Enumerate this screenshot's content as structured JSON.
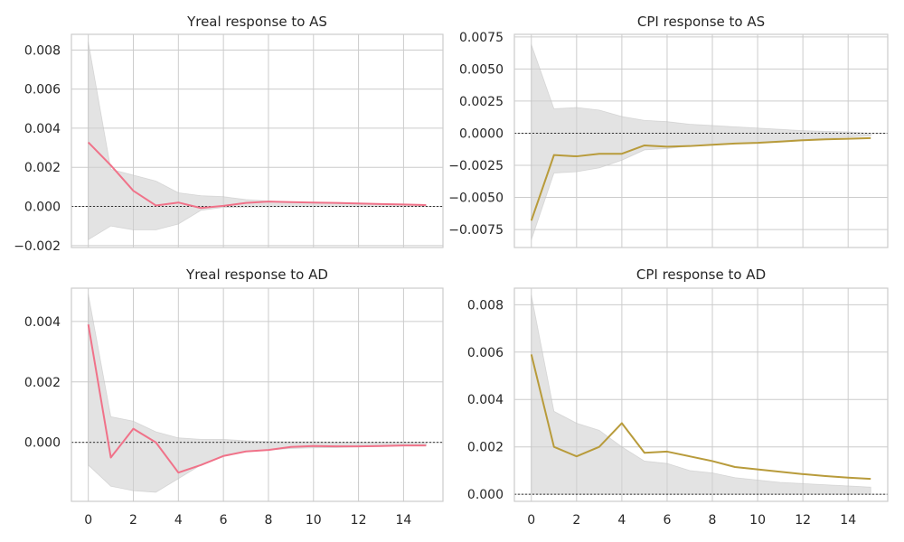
{
  "figure": {
    "background": "#ffffff",
    "grid": true
  },
  "chart_data": [
    {
      "type": "line",
      "title": "Yreal response to AS",
      "x": [
        0,
        1,
        2,
        3,
        4,
        5,
        6,
        7,
        8,
        9,
        10,
        11,
        12,
        13,
        14,
        15
      ],
      "series": [
        {
          "values": [
            0.00328,
            0.0021,
            0.0008,
            5e-05,
            0.0002,
            -8e-05,
            3e-05,
            0.00018,
            0.00025,
            0.00022,
            0.0002,
            0.00018,
            0.00015,
            0.00012,
            0.0001,
            7e-05
          ],
          "color": "#f07289"
        }
      ],
      "band_upper": [
        0.0084,
        0.0019,
        0.0016,
        0.0013,
        0.0007,
        0.00055,
        0.0005,
        0.00035,
        0.00028,
        0.00022,
        0.00018,
        0.00015,
        0.00012,
        0.0001,
        8e-05,
        6e-05
      ],
      "band_lower": [
        -0.0017,
        -0.001,
        -0.0012,
        -0.0012,
        -0.0009,
        -0.0002,
        -5e-05,
        -3e-05,
        -2e-05,
        -1e-05,
        -1e-05,
        -1e-05,
        0.0,
        0.0,
        0.0,
        0.0
      ],
      "xlim": [
        -0.75,
        15.75
      ],
      "ylim": [
        -0.0021,
        0.0088
      ],
      "y_ticks": [
        -0.002,
        0.0,
        0.002,
        0.004,
        0.006,
        0.008
      ],
      "y_tick_labels": [
        "−0.002",
        "0.000",
        "0.002",
        "0.004",
        "0.006",
        "0.008"
      ],
      "x_ticks": [
        0,
        2,
        4,
        6,
        8,
        10,
        12,
        14
      ],
      "x_tick_labels": [
        "",
        "",
        "",
        "",
        "",
        "",
        "",
        ""
      ]
    },
    {
      "type": "line",
      "title": "CPI response to AS",
      "x": [
        0,
        1,
        2,
        3,
        4,
        5,
        6,
        7,
        8,
        9,
        10,
        11,
        12,
        13,
        14,
        15
      ],
      "series": [
        {
          "values": [
            -0.0068,
            -0.0017,
            -0.0018,
            -0.0016,
            -0.0016,
            -0.00095,
            -0.00105,
            -0.001,
            -0.0009,
            -0.0008,
            -0.00075,
            -0.00065,
            -0.00055,
            -0.00048,
            -0.00043,
            -0.00038
          ],
          "color": "#b89b3b"
        }
      ],
      "band_upper": [
        0.0069,
        0.0019,
        0.002,
        0.0018,
        0.0013,
        0.001,
        0.0009,
        0.0007,
        0.0006,
        0.0005,
        0.0004,
        0.0003,
        0.0002,
        0.00015,
        0.0001,
        0.0
      ],
      "band_lower": [
        -0.0083,
        -0.0031,
        -0.003,
        -0.0027,
        -0.0021,
        -0.0013,
        -0.0012,
        -0.001,
        -0.0009,
        -0.0008,
        -0.0007,
        -0.0006,
        -0.0005,
        -0.0004,
        -0.0003,
        -0.0002
      ],
      "xlim": [
        -0.75,
        15.75
      ],
      "ylim": [
        -0.0089,
        0.0077
      ],
      "y_ticks": [
        -0.0075,
        -0.005,
        -0.0025,
        0.0,
        0.0025,
        0.005,
        0.0075
      ],
      "y_tick_labels": [
        "−0.0075",
        "−0.0050",
        "−0.0025",
        "0.0000",
        "0.0025",
        "0.0050",
        "0.0075"
      ],
      "x_ticks": [
        0,
        2,
        4,
        6,
        8,
        10,
        12,
        14
      ],
      "x_tick_labels": [
        "",
        "",
        "",
        "",
        "",
        "",
        "",
        ""
      ]
    },
    {
      "type": "line",
      "title": "Yreal response to AD",
      "x": [
        0,
        1,
        2,
        3,
        4,
        5,
        6,
        7,
        8,
        9,
        10,
        11,
        12,
        13,
        14,
        15
      ],
      "series": [
        {
          "values": [
            0.0039,
            -0.0005,
            0.00045,
            0.0,
            -0.001,
            -0.00075,
            -0.00045,
            -0.0003,
            -0.00025,
            -0.00015,
            -0.00012,
            -0.00013,
            -0.00013,
            -0.00012,
            -0.0001,
            -0.0001
          ],
          "color": "#f07289"
        }
      ],
      "band_upper": [
        0.0049,
        0.00085,
        0.0007,
        0.00035,
        0.00015,
        0.0001,
        0.0001,
        5e-05,
        3e-05,
        2e-05,
        2e-05,
        1e-05,
        1e-05,
        1e-05,
        1e-05,
        1e-05
      ],
      "band_lower": [
        -0.00075,
        -0.00145,
        -0.0016,
        -0.00165,
        -0.0012,
        -0.00075,
        -0.00045,
        -0.0003,
        -0.00025,
        -0.0002,
        -0.00018,
        -0.00017,
        -0.00015,
        -0.00013,
        -0.00012,
        -0.00012
      ],
      "xlim": [
        -0.75,
        15.75
      ],
      "ylim": [
        -0.00195,
        0.0051
      ],
      "y_ticks": [
        0.0,
        0.002,
        0.004
      ],
      "y_tick_labels": [
        "0.000",
        "0.002",
        "0.004"
      ],
      "x_ticks": [
        0,
        2,
        4,
        6,
        8,
        10,
        12,
        14
      ],
      "x_tick_labels": [
        "0",
        "2",
        "4",
        "6",
        "8",
        "10",
        "12",
        "14"
      ]
    },
    {
      "type": "line",
      "title": "CPI response to AD",
      "x": [
        0,
        1,
        2,
        3,
        4,
        5,
        6,
        7,
        8,
        9,
        10,
        11,
        12,
        13,
        14,
        15
      ],
      "series": [
        {
          "values": [
            0.0059,
            0.002,
            0.0016,
            0.002,
            0.003,
            0.00175,
            0.0018,
            0.0016,
            0.0014,
            0.00115,
            0.00105,
            0.00095,
            0.00085,
            0.00077,
            0.0007,
            0.00065
          ],
          "color": "#b89b3b"
        }
      ],
      "band_upper": [
        0.0084,
        0.0035,
        0.003,
        0.0027,
        0.002,
        0.0014,
        0.0013,
        0.001,
        0.0009,
        0.0007,
        0.0006,
        0.0005,
        0.00045,
        0.0004,
        0.00035,
        0.0003
      ],
      "band_lower": [
        0.0,
        0.0,
        0.0,
        0.0,
        0.0,
        0.0,
        0.0,
        0.0,
        0.0,
        0.0,
        0.0,
        0.0,
        0.0,
        0.0,
        0.0,
        0.0
      ],
      "xlim": [
        -0.75,
        15.75
      ],
      "ylim": [
        -0.0003,
        0.0087
      ],
      "y_ticks": [
        0.0,
        0.002,
        0.004,
        0.006,
        0.008
      ],
      "y_tick_labels": [
        "0.000",
        "0.002",
        "0.004",
        "0.006",
        "0.008"
      ],
      "x_ticks": [
        0,
        2,
        4,
        6,
        8,
        10,
        12,
        14
      ],
      "x_tick_labels": [
        "0",
        "2",
        "4",
        "6",
        "8",
        "10",
        "12",
        "14"
      ]
    }
  ]
}
